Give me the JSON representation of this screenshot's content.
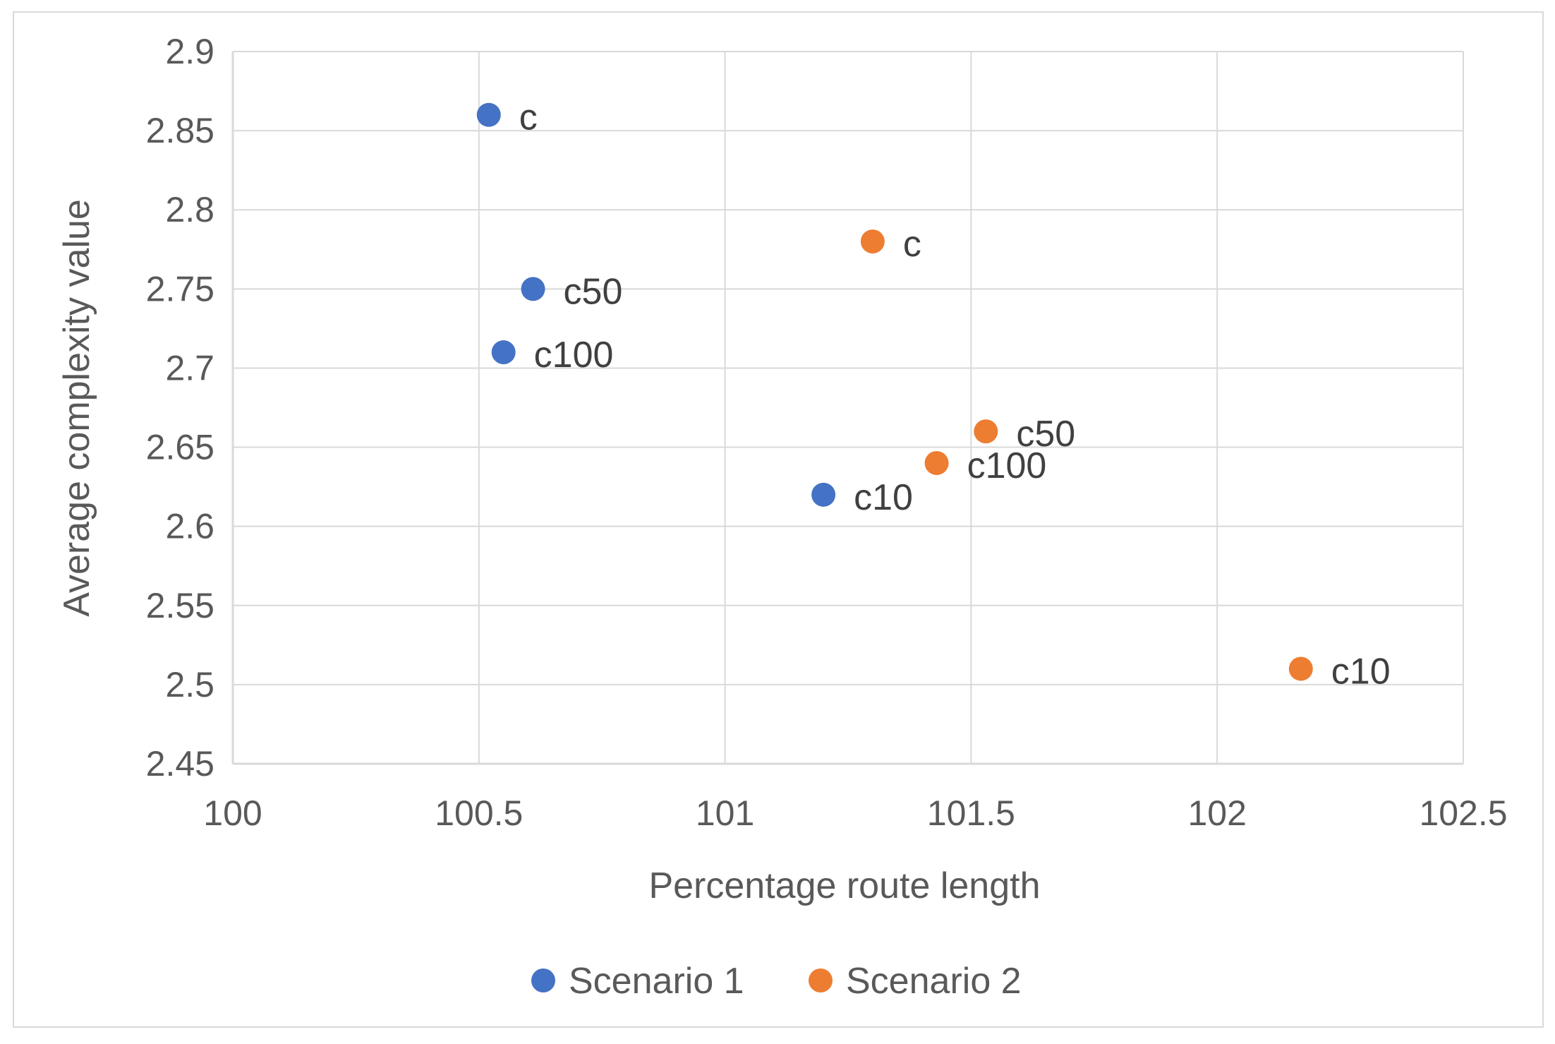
{
  "chart_data": {
    "type": "scatter",
    "title": "",
    "xlabel": "Percentage route length",
    "ylabel": "Average complexity value",
    "xlim": [
      100,
      102.5
    ],
    "ylim": [
      2.45,
      2.9
    ],
    "xticks": [
      "100",
      "100.5",
      "101",
      "101.5",
      "102",
      "102.5"
    ],
    "yticks": [
      "2.45",
      "2.5",
      "2.55",
      "2.6",
      "2.65",
      "2.7",
      "2.75",
      "2.8",
      "2.85",
      "2.9"
    ],
    "grid": true,
    "legend_position": "bottom",
    "series": [
      {
        "name": "Scenario 1",
        "color": "#4472c4",
        "points": [
          {
            "x": 100.52,
            "y": 2.86,
            "label": "c"
          },
          {
            "x": 100.61,
            "y": 2.75,
            "label": "c50"
          },
          {
            "x": 100.55,
            "y": 2.71,
            "label": "c100"
          },
          {
            "x": 101.2,
            "y": 2.62,
            "label": "c10"
          }
        ]
      },
      {
        "name": "Scenario 2",
        "color": "#ed7d31",
        "points": [
          {
            "x": 101.3,
            "y": 2.78,
            "label": "c"
          },
          {
            "x": 101.53,
            "y": 2.66,
            "label": "c50"
          },
          {
            "x": 101.43,
            "y": 2.64,
            "label": "c100"
          },
          {
            "x": 102.17,
            "y": 2.51,
            "label": "c10"
          }
        ]
      }
    ]
  }
}
